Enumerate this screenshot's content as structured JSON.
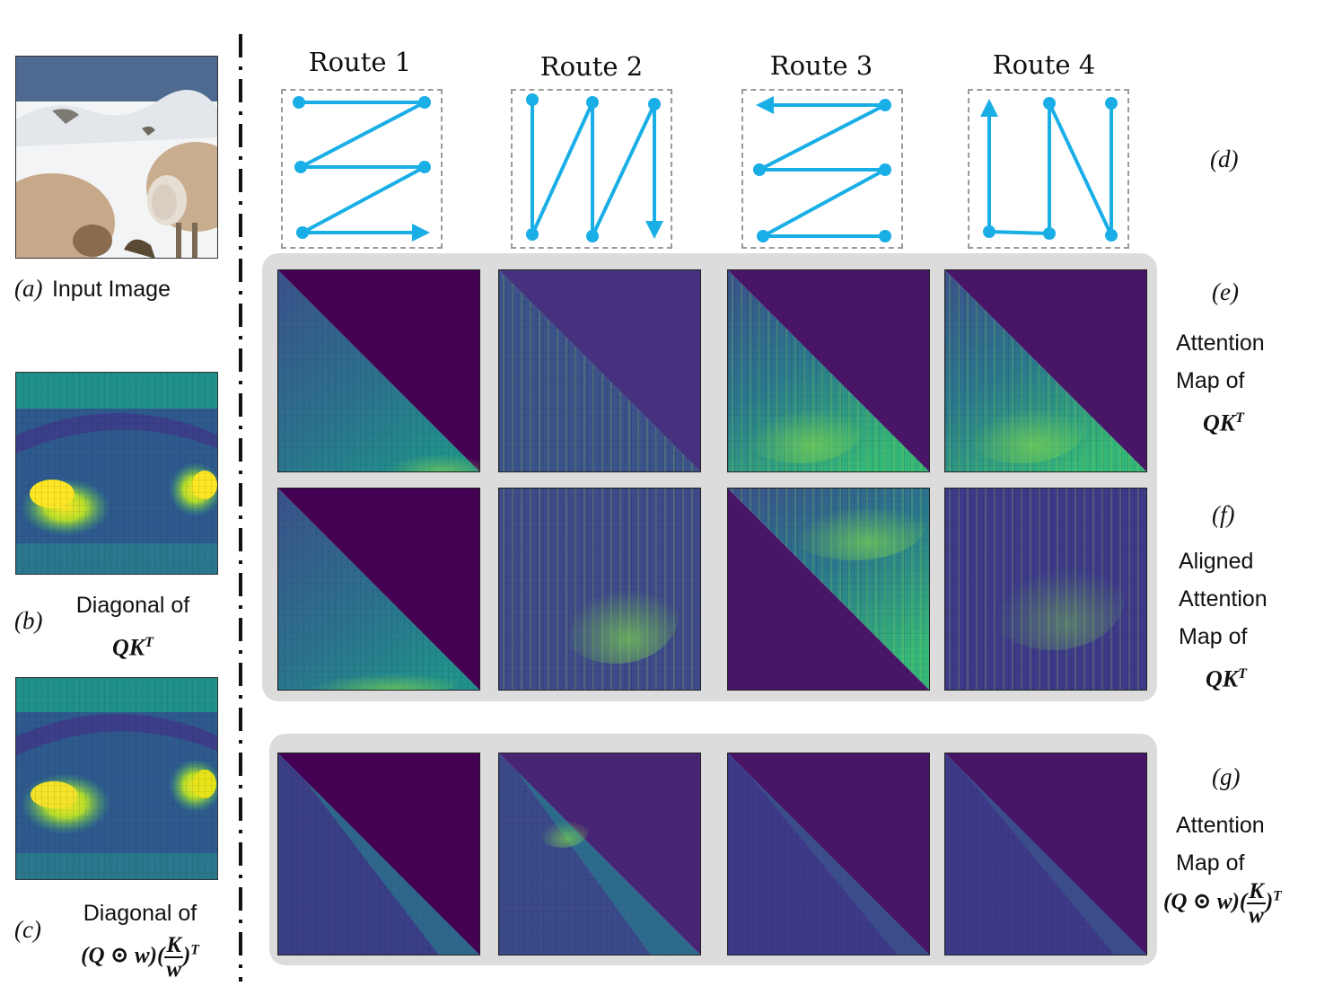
{
  "routes": [
    "Route 1",
    "Route 2",
    "Route 3",
    "Route 4"
  ],
  "input_panel": {
    "tag": "(a)",
    "caption": "Input Image"
  },
  "diag_qk": {
    "tag": "(b)",
    "line1": "Diagonal of",
    "math": "QK",
    "sup": "T"
  },
  "diag_qwk": {
    "tag": "(c)",
    "line1": "Diagonal of",
    "math_pre": "(Q ⊙ w)(",
    "num": "K",
    "den": "w",
    "math_post": ")",
    "sup": "T"
  },
  "row_d": {
    "tag": "(d)"
  },
  "row_e": {
    "tag": "(e)",
    "line1": "Attention",
    "line2": "Map of",
    "math": "QK",
    "sup": "T"
  },
  "row_f": {
    "tag": "(f)",
    "line1": "Aligned",
    "line2": "Attention",
    "line3": "Map of",
    "math": "QK",
    "sup": "T"
  },
  "row_g": {
    "tag": "(g)",
    "line1": "Attention",
    "line2": "Map of",
    "math_pre": "(Q ⊙ w)(",
    "num": "K",
    "den": "w",
    "math_post": ")",
    "sup": "T"
  },
  "colors": {
    "route_line": "#1aaee6",
    "panel_bg": "#dcdcdc",
    "viridis_dark": "#440154",
    "viridis_mid": "#31688e",
    "viridis_green": "#35b779",
    "viridis_yellow": "#fde725"
  }
}
